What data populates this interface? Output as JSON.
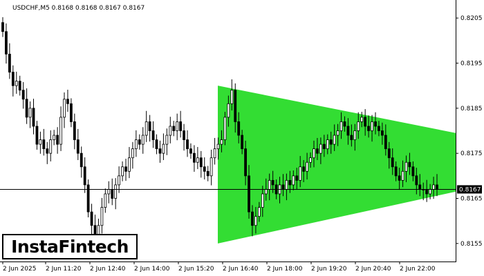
{
  "header": {
    "text": "USDCHF,M5  0.8168 0.8168 0.8167 0.8167"
  },
  "logo": {
    "text": "InstaFintech"
  },
  "colors": {
    "pattern_fill": "#33dd33",
    "candle": "#000000",
    "background": "#ffffff",
    "price_label_bg": "#000000",
    "price_label_text": "#ffffff"
  },
  "chart_data": {
    "type": "candlestick",
    "symbol": "USDCHF",
    "timeframe": "M5",
    "ylim": [
      0.8151,
      0.8209
    ],
    "y_ticks": [
      "0.8205",
      "0.8195",
      "0.8185",
      "0.8175",
      "0.8165",
      "0.8155"
    ],
    "x_ticks": [
      "2 Jun 2025",
      "2 Jun 11:20",
      "2 Jun 12:40",
      "2 Jun 14:00",
      "2 Jun 15:20",
      "2 Jun 16:40",
      "2 Jun 18:00",
      "2 Jun 19:20",
      "2 Jun 20:40",
      "2 Jun 22:00"
    ],
    "current_price": "0.8167",
    "current_price_value": 0.8167,
    "pattern": {
      "name": "symmetrical triangle",
      "apex_left_top": 0.819,
      "apex_left_bottom": 0.8155,
      "right_top": 0.81795,
      "right_bottom": 0.81665
    },
    "close_series": [
      0.8202,
      0.8197,
      0.8193,
      0.819,
      0.8191,
      0.8189,
      0.8187,
      0.8183,
      0.8185,
      0.8181,
      0.8177,
      0.8178,
      0.8176,
      0.8175,
      0.8178,
      0.8179,
      0.8177,
      0.8183,
      0.8187,
      0.8186,
      0.8182,
      0.8178,
      0.8175,
      0.8172,
      0.8168,
      0.8162,
      0.8159,
      0.8157,
      0.8159,
      0.8163,
      0.8166,
      0.8167,
      0.8165,
      0.8168,
      0.817,
      0.8172,
      0.8171,
      0.8174,
      0.8176,
      0.8178,
      0.8177,
      0.8179,
      0.8182,
      0.818,
      0.8178,
      0.8176,
      0.8175,
      0.8177,
      0.8179,
      0.8181,
      0.818,
      0.8182,
      0.818,
      0.8178,
      0.8176,
      0.8175,
      0.8173,
      0.8174,
      0.8172,
      0.8171,
      0.817,
      0.8174,
      0.8176,
      0.8177,
      0.8178,
      0.8183,
      0.8186,
      0.8189,
      0.8182,
      0.8179,
      0.8176,
      0.817,
      0.8162,
      0.8159,
      0.8161,
      0.8163,
      0.8166,
      0.8167,
      0.8169,
      0.8168,
      0.8166,
      0.8168,
      0.8167,
      0.8169,
      0.8168,
      0.817,
      0.8169,
      0.8172,
      0.8171,
      0.8173,
      0.8174,
      0.8176,
      0.8175,
      0.8177,
      0.8176,
      0.8178,
      0.8177,
      0.8179,
      0.818,
      0.8182,
      0.8181,
      0.8179,
      0.8178,
      0.818,
      0.8182,
      0.8183,
      0.8181,
      0.818,
      0.8182,
      0.8181,
      0.818,
      0.8179,
      0.8176,
      0.8174,
      0.8172,
      0.817,
      0.8169,
      0.8171,
      0.8173,
      0.8172,
      0.817,
      0.8168,
      0.8167,
      0.8167,
      0.8166,
      0.8167,
      0.8168,
      0.8167
    ]
  }
}
